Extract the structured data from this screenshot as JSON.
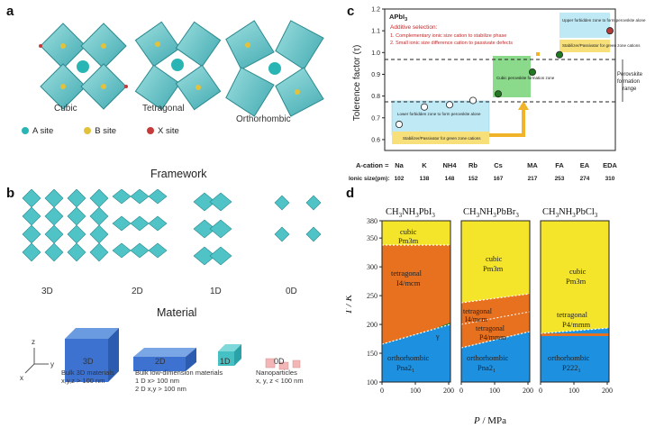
{
  "panel_a": {
    "label": "a",
    "structures": [
      "Cubic",
      "Tetragonal",
      "Orthorhombic"
    ],
    "legend": [
      {
        "label": "A site",
        "color": "#2ab5b5"
      },
      {
        "label": "B site",
        "color": "#e2c23a"
      },
      {
        "label": "X site",
        "color": "#c63a3a"
      }
    ]
  },
  "framework_title": "Framework",
  "panel_b": {
    "label": "b",
    "dims": [
      "3D",
      "2D",
      "1D",
      "0D"
    ],
    "material_title": "Material",
    "blocks": [
      {
        "label": "3D",
        "caption": [
          "Bulk 3D materials",
          "x,y,z > 100 nm"
        ]
      },
      {
        "label": "2D",
        "caption": [
          "Bulk low-dimension materials",
          "1 D x> 100 nm",
          "2 D x,y > 100 nm"
        ]
      },
      {
        "label": "1D",
        "caption": []
      },
      {
        "label": "0D",
        "caption": [
          "Nanoparticles",
          "x, y, z < 100 nm"
        ]
      }
    ],
    "axes": [
      "z",
      "y",
      "x"
    ]
  },
  "panel_c": {
    "label": "c",
    "formula": "APbI",
    "formula_sub": "3",
    "ylabel": "Tolerence factor (τ)",
    "yticks": [
      "1.2",
      "1.1",
      "1.0",
      "0.9",
      "0.8",
      "0.7",
      "0.6"
    ],
    "additive_title": "Additive selection:",
    "additive_items": [
      "1.  Complementary ionic size cation to stabilize phase",
      "2.  Small ionic size difference cation to passivate defects"
    ],
    "zone_upper": "Upper forbidden zone to form perovskite alone",
    "zone_upper_stab": "Stabilizer/Passivator for green zone cations",
    "zone_cubic": "Cubic perovskite formation zone",
    "zone_lower": "Lower forbidden zone to form perovskite alone",
    "zone_lower_stab": "Stabilizer/Passivator for green zone cations",
    "range_label": [
      "Perovskite",
      "formation",
      "range"
    ],
    "cation_row_label": "A-cation =",
    "cations": [
      "Na",
      "K",
      "NH4",
      "Rb",
      "Cs",
      "MA",
      "FA",
      "EA",
      "EDA"
    ],
    "ionic_row_label": "Ionic size(pm):",
    "ionic_sizes": [
      "102",
      "138",
      "148",
      "152",
      "167",
      "217",
      "253",
      "274",
      "310"
    ],
    "points": [
      {
        "cation": "Na",
        "tau": 0.67,
        "filled": false
      },
      {
        "cation": "K",
        "tau": 0.75,
        "filled": false
      },
      {
        "cation": "NH4",
        "tau": 0.76,
        "filled": false
      },
      {
        "cation": "Rb",
        "tau": 0.78,
        "filled": false
      },
      {
        "cation": "Cs",
        "tau": 0.81,
        "filled": true
      },
      {
        "cation": "MA",
        "tau": 0.91,
        "filled": true
      },
      {
        "cation": "FA",
        "tau": 0.99,
        "filled": true
      },
      {
        "cation": "EDA",
        "tau": 1.1,
        "filled": true
      }
    ]
  },
  "panel_d": {
    "label": "d",
    "ylabel": "T / K",
    "xlabel_italic": "P",
    "xlabel_rest": " / MPa",
    "yticks": [
      "380",
      "350",
      "300",
      "250",
      "200",
      "150",
      "100"
    ],
    "xticks": [
      "0",
      "100",
      "200"
    ],
    "titles": [
      {
        "main": "CH",
        "s1": "3",
        "mid": "NH",
        "s2": "3",
        "end": "PbI",
        "s3": "3"
      },
      {
        "main": "CH",
        "s1": "3",
        "mid": "NH",
        "s2": "3",
        "end": "PbBr",
        "s3": "3"
      },
      {
        "main": "CH",
        "s1": "3",
        "mid": "NH",
        "s2": "3",
        "end": "PbCl",
        "s3": "3"
      }
    ],
    "phases": {
      "i": [
        "cubic",
        "Pm3m",
        "tetragonal",
        "I4/mcm",
        "orthorhombic",
        "Pna2",
        "1",
        "γ"
      ],
      "br": [
        "cubic",
        "Pm3m",
        "tetragonal",
        "I4/mcm",
        "tetragonal",
        "P4/mmm",
        "orthorhombic",
        "Pna2",
        "1"
      ],
      "cl": [
        "cubic",
        "Pm3m",
        "tetragonal",
        "P4/mmm",
        "orthorhombic",
        "P222",
        "1"
      ]
    },
    "colors": {
      "cubic": "#f5e52a",
      "tetragonal": "#e8711f",
      "orthorhombic": "#1e90e0",
      "gamma": "#1e8a3c"
    }
  }
}
